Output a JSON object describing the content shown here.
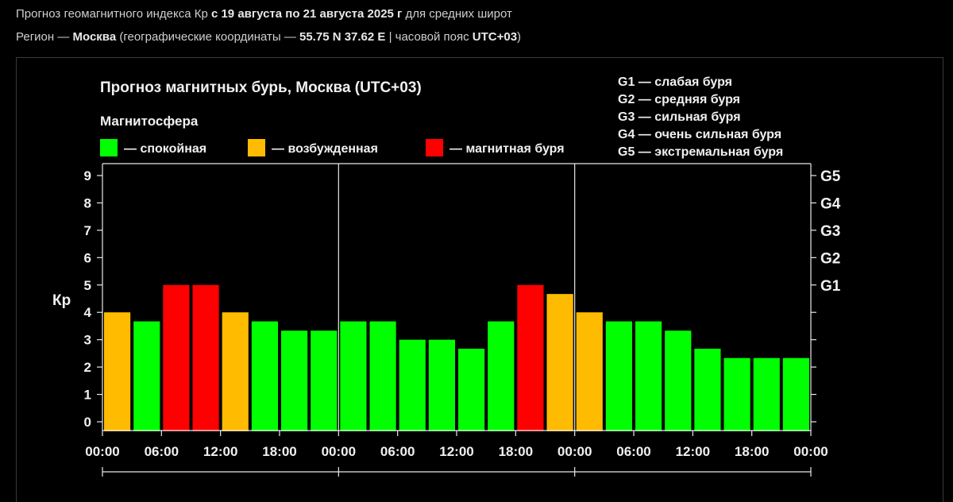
{
  "header": {
    "line1_prefix": "Прогноз геомагнитного индекса Кр ",
    "line1_dates": "с 19 августа по 21 августа 2025 г",
    "line1_suffix": " для средних широт",
    "line2_prefix": "Регион — ",
    "line2_city": "Москва",
    "line2_middle": " (географические координаты — ",
    "line2_coords": "55.75 N 37.62 E",
    "line2_middle2": " | часовой пояс ",
    "line2_tz": "UTC+03",
    "line2_suffix": ")"
  },
  "chart_data": {
    "type": "bar",
    "title": "Прогноз магнитных бурь, Москва (UTC+03)",
    "legend_title": "Магнитосфера",
    "legend": [
      {
        "label": "— спокойная",
        "color": "#00ff00"
      },
      {
        "label": "— возбужденная",
        "color": "#ffbb00"
      },
      {
        "label": "— магнитная буря",
        "color": "#ff0000"
      }
    ],
    "storm_levels": [
      {
        "label": "G1 — слабая буря"
      },
      {
        "label": "G2 — средняя буря"
      },
      {
        "label": "G3 — сильная буря"
      },
      {
        "label": "G4 — очень сильная буря"
      },
      {
        "label": "G5 — экстремальная буря"
      }
    ],
    "ylabel": "Кр",
    "ylim": [
      0,
      9
    ],
    "yticks": [
      "0",
      "1",
      "2",
      "3",
      "4",
      "5",
      "6",
      "7",
      "8",
      "9"
    ],
    "right_ticks": [
      {
        "value": 5,
        "label": "G1"
      },
      {
        "value": 6,
        "label": "G2"
      },
      {
        "value": 7,
        "label": "G3"
      },
      {
        "value": 8,
        "label": "G4"
      },
      {
        "value": 9,
        "label": "G5"
      }
    ],
    "xticks": [
      "00:00",
      "06:00",
      "12:00",
      "18:00",
      "00:00",
      "06:00",
      "12:00",
      "18:00",
      "00:00",
      "06:00",
      "12:00",
      "18:00",
      "00:00"
    ],
    "day_count": 3,
    "bars_per_day": 8,
    "values": [
      4,
      3.67,
      5,
      5,
      4,
      3.67,
      3.33,
      3.33,
      3.67,
      3.67,
      3,
      3,
      2.67,
      3.67,
      5,
      4.67,
      4,
      3.67,
      3.67,
      3.33,
      2.67,
      2.33,
      2.33,
      2.33
    ],
    "status": [
      "excited",
      "quiet",
      "storm",
      "storm",
      "excited",
      "quiet",
      "quiet",
      "quiet",
      "quiet",
      "quiet",
      "quiet",
      "quiet",
      "quiet",
      "quiet",
      "storm",
      "excited",
      "excited",
      "quiet",
      "quiet",
      "quiet",
      "quiet",
      "quiet",
      "quiet",
      "quiet"
    ],
    "colors": {
      "quiet": "#00ff00",
      "excited": "#ffbb00",
      "storm": "#ff0000",
      "axis": "#e8e8e8",
      "text": "#f0f0f0"
    }
  }
}
